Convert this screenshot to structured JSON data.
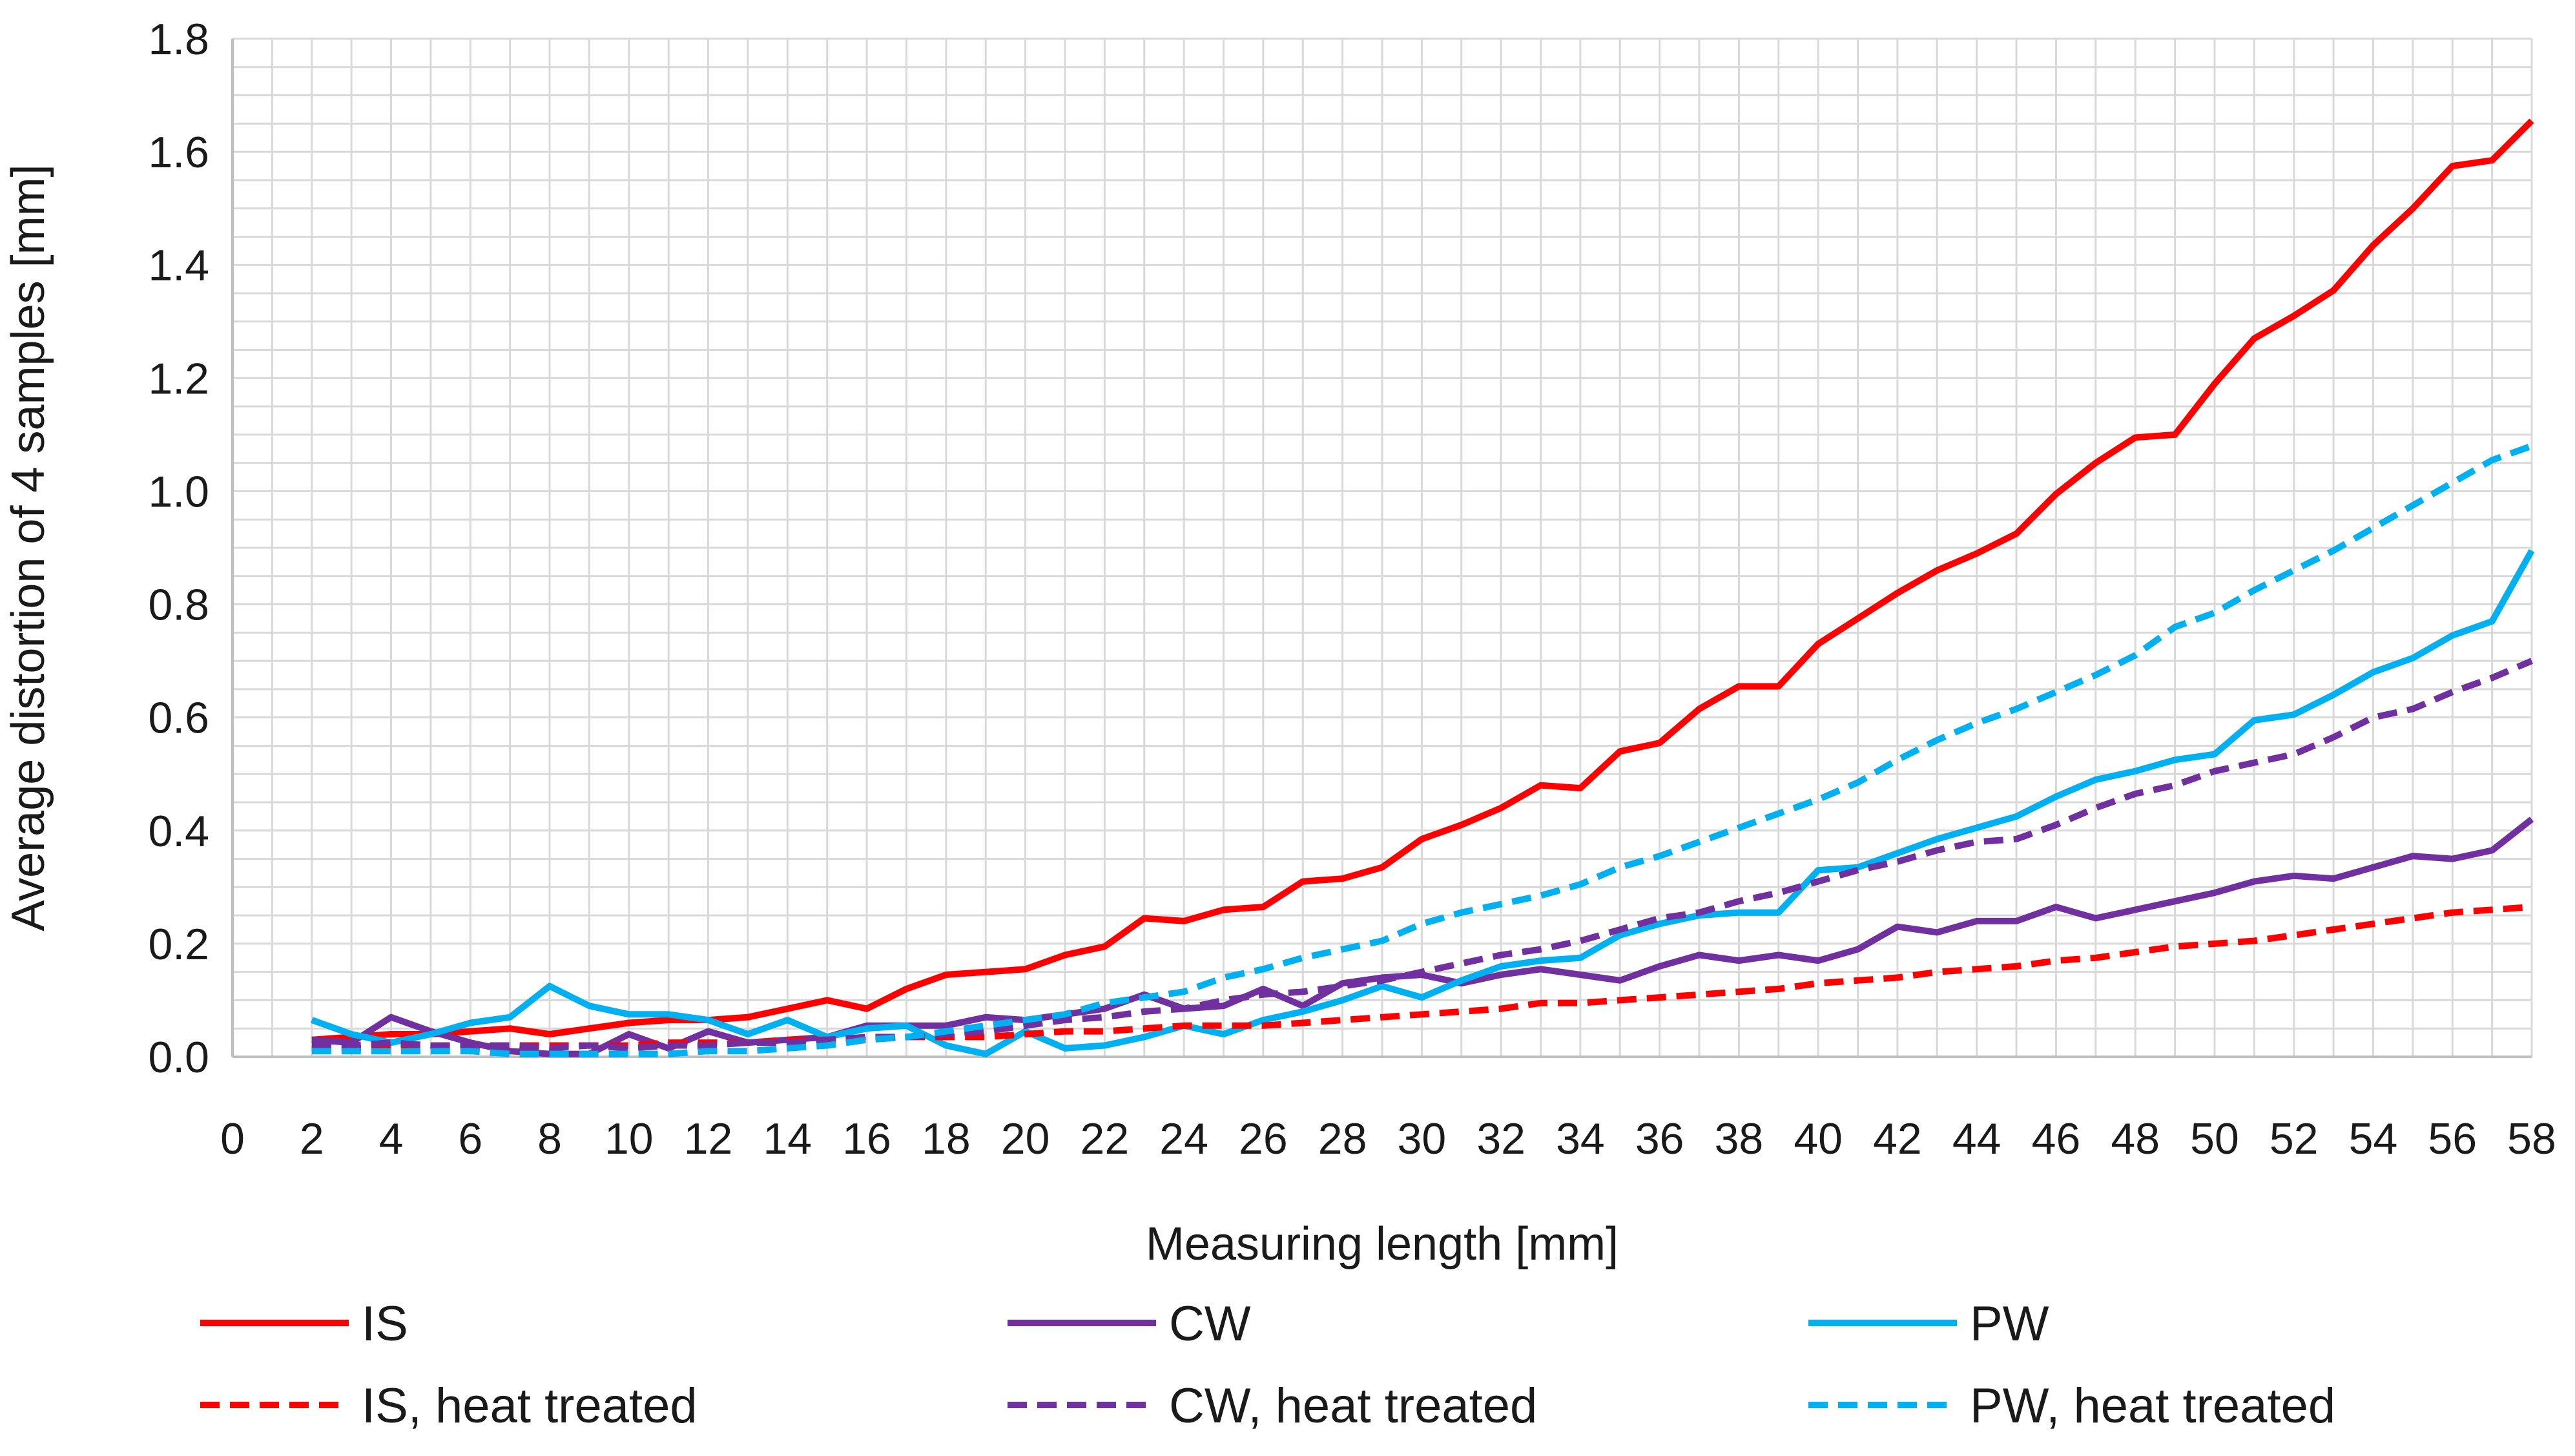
{
  "chart_data": {
    "type": "line",
    "title": "",
    "xlabel": "Measuring length [mm]",
    "ylabel": "Average distortion of 4 samples [mm]",
    "xlim": [
      0,
      58
    ],
    "ylim": [
      0,
      1.8
    ],
    "grid": true,
    "legend_position": "bottom",
    "x_ticks": [
      0,
      2,
      4,
      6,
      8,
      10,
      12,
      14,
      16,
      18,
      20,
      22,
      24,
      26,
      28,
      30,
      32,
      34,
      36,
      38,
      40,
      42,
      44,
      46,
      48,
      50,
      52,
      54,
      56,
      58
    ],
    "y_ticks": [
      "0.0",
      "0.2",
      "0.4",
      "0.6",
      "0.8",
      "1.0",
      "1.2",
      "1.4",
      "1.6",
      "1.8"
    ],
    "x": [
      2,
      3,
      4,
      5,
      6,
      7,
      8,
      9,
      10,
      11,
      12,
      13,
      14,
      15,
      16,
      17,
      18,
      19,
      20,
      21,
      22,
      23,
      24,
      25,
      26,
      27,
      28,
      29,
      30,
      31,
      32,
      33,
      34,
      35,
      36,
      37,
      38,
      39,
      40,
      41,
      42,
      43,
      44,
      45,
      46,
      47,
      48,
      49,
      50,
      51,
      52,
      53,
      54,
      55,
      56,
      57,
      58
    ],
    "series": [
      {
        "name": "IS",
        "color": "#ff0000",
        "dash": "solid",
        "values": [
          0.03,
          0.035,
          0.04,
          0.04,
          0.045,
          0.05,
          0.04,
          0.05,
          0.06,
          0.065,
          0.065,
          0.07,
          0.085,
          0.1,
          0.085,
          0.12,
          0.145,
          0.15,
          0.155,
          0.18,
          0.195,
          0.245,
          0.24,
          0.26,
          0.265,
          0.31,
          0.315,
          0.335,
          0.385,
          0.41,
          0.44,
          0.48,
          0.475,
          0.54,
          0.555,
          0.615,
          0.655,
          0.655,
          0.73,
          0.775,
          0.82,
          0.86,
          0.89,
          0.925,
          0.995,
          1.05,
          1.095,
          1.1,
          1.19,
          1.27,
          1.31,
          1.355,
          1.435,
          1.5,
          1.575,
          1.585,
          1.655
        ]
      },
      {
        "name": "CW",
        "color": "#7030a0",
        "dash": "solid",
        "values": [
          0.03,
          0.025,
          0.07,
          0.045,
          0.025,
          0.01,
          0.005,
          0.005,
          0.04,
          0.015,
          0.045,
          0.025,
          0.03,
          0.035,
          0.055,
          0.055,
          0.055,
          0.07,
          0.065,
          0.075,
          0.085,
          0.11,
          0.085,
          0.09,
          0.12,
          0.09,
          0.13,
          0.14,
          0.145,
          0.13,
          0.145,
          0.155,
          0.145,
          0.135,
          0.16,
          0.18,
          0.17,
          0.18,
          0.17,
          0.19,
          0.23,
          0.22,
          0.24,
          0.24,
          0.265,
          0.245,
          0.26,
          0.275,
          0.29,
          0.31,
          0.32,
          0.315,
          0.335,
          0.355,
          0.35,
          0.365,
          0.42
        ]
      },
      {
        "name": "PW",
        "color": "#00b0f0",
        "dash": "solid",
        "values": [
          0.065,
          0.04,
          0.025,
          0.04,
          0.06,
          0.07,
          0.125,
          0.09,
          0.075,
          0.075,
          0.065,
          0.04,
          0.065,
          0.035,
          0.05,
          0.055,
          0.02,
          0.005,
          0.045,
          0.015,
          0.02,
          0.035,
          0.055,
          0.04,
          0.065,
          0.08,
          0.1,
          0.125,
          0.105,
          0.135,
          0.16,
          0.17,
          0.175,
          0.215,
          0.235,
          0.25,
          0.255,
          0.255,
          0.33,
          0.335,
          0.36,
          0.385,
          0.405,
          0.425,
          0.46,
          0.49,
          0.505,
          0.525,
          0.535,
          0.595,
          0.605,
          0.64,
          0.68,
          0.705,
          0.745,
          0.77,
          0.895
        ]
      },
      {
        "name": "IS, heat treated",
        "color": "#ff0000",
        "dash": "dashed",
        "values": [
          0.015,
          0.015,
          0.02,
          0.02,
          0.02,
          0.02,
          0.02,
          0.02,
          0.02,
          0.025,
          0.025,
          0.025,
          0.03,
          0.03,
          0.03,
          0.035,
          0.035,
          0.035,
          0.04,
          0.045,
          0.045,
          0.05,
          0.055,
          0.055,
          0.055,
          0.06,
          0.065,
          0.07,
          0.075,
          0.08,
          0.085,
          0.095,
          0.095,
          0.1,
          0.105,
          0.11,
          0.115,
          0.12,
          0.13,
          0.135,
          0.14,
          0.15,
          0.155,
          0.16,
          0.17,
          0.175,
          0.185,
          0.195,
          0.2,
          0.205,
          0.215,
          0.225,
          0.235,
          0.245,
          0.255,
          0.26,
          0.265
        ]
      },
      {
        "name": "CW, heat treated",
        "color": "#7030a0",
        "dash": "dashed",
        "values": [
          0.02,
          0.02,
          0.025,
          0.02,
          0.02,
          0.02,
          0.015,
          0.02,
          0.015,
          0.02,
          0.02,
          0.025,
          0.025,
          0.03,
          0.035,
          0.035,
          0.04,
          0.045,
          0.055,
          0.065,
          0.07,
          0.08,
          0.085,
          0.1,
          0.11,
          0.115,
          0.125,
          0.135,
          0.15,
          0.165,
          0.18,
          0.19,
          0.205,
          0.225,
          0.245,
          0.255,
          0.275,
          0.29,
          0.31,
          0.33,
          0.345,
          0.365,
          0.38,
          0.385,
          0.41,
          0.44,
          0.465,
          0.48,
          0.505,
          0.52,
          0.535,
          0.565,
          0.6,
          0.615,
          0.645,
          0.67,
          0.7
        ]
      },
      {
        "name": "PW, heat treated",
        "color": "#00b0f0",
        "dash": "dashed",
        "values": [
          0.01,
          0.01,
          0.01,
          0.01,
          0.01,
          0.005,
          0.005,
          0.005,
          0.005,
          0.005,
          0.01,
          0.01,
          0.015,
          0.02,
          0.03,
          0.035,
          0.045,
          0.055,
          0.065,
          0.075,
          0.095,
          0.105,
          0.115,
          0.14,
          0.155,
          0.175,
          0.19,
          0.205,
          0.235,
          0.255,
          0.27,
          0.285,
          0.305,
          0.335,
          0.355,
          0.38,
          0.405,
          0.43,
          0.455,
          0.485,
          0.525,
          0.56,
          0.59,
          0.615,
          0.645,
          0.675,
          0.71,
          0.76,
          0.785,
          0.825,
          0.86,
          0.895,
          0.935,
          0.975,
          1.015,
          1.055,
          1.08
        ]
      }
    ]
  }
}
